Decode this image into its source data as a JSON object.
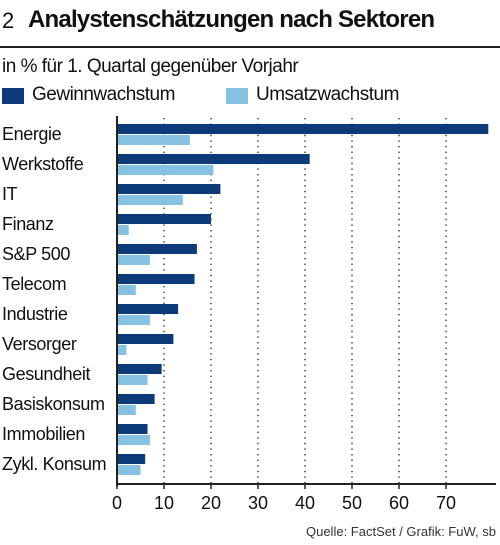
{
  "header": {
    "number": "2",
    "title": "Analystenschätzungen nach Sektoren",
    "subtitle": "in % für 1. Quartal gegenüber Vorjahr"
  },
  "source": "Quelle: FactSet / Grafik: FuW, sb",
  "colors": {
    "gewinn": "#0d3a78",
    "umsatz": "#86c1e2",
    "axis": "#222222",
    "grid": "#333333"
  },
  "chart_data": {
    "type": "bar",
    "orientation": "horizontal",
    "title": "Analystenschätzungen nach Sektoren",
    "subtitle": "in % für 1. Quartal gegenüber Vorjahr",
    "xlabel": "",
    "ylabel": "",
    "xlim": [
      0,
      80
    ],
    "xticks": [
      0,
      10,
      20,
      30,
      40,
      50,
      60,
      70
    ],
    "grid": "vertical dotted",
    "legend_position": "top-left",
    "categories": [
      "Energie",
      "Werkstoffe",
      "IT",
      "Finanz",
      "S&P 500",
      "Telecom",
      "Industrie",
      "Versorger",
      "Gesundheit",
      "Basiskonsum",
      "Immobilien",
      "Zykl. Konsum"
    ],
    "series": [
      {
        "name": "Gewinnwachstum",
        "values": [
          79,
          41,
          22,
          20,
          17,
          16.5,
          13,
          12,
          9.5,
          8,
          6.5,
          6
        ]
      },
      {
        "name": "Umsatzwachstum",
        "values": [
          15.5,
          20.5,
          14,
          2.5,
          7,
          4,
          7,
          2,
          6.5,
          4,
          7,
          5
        ]
      }
    ]
  }
}
